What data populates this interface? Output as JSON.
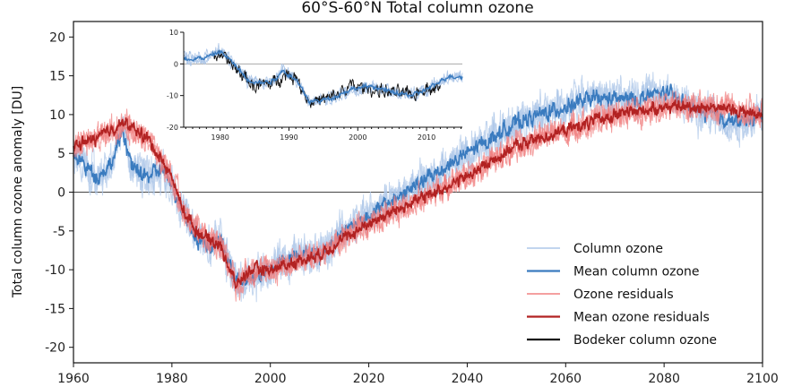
{
  "chart_data": {
    "type": "line",
    "title": "60°S-60°N Total column ozone",
    "xlabel": "",
    "ylabel": "Total column ozone anomaly [DU]",
    "xlim": [
      1960,
      2100
    ],
    "ylim": [
      -22,
      22
    ],
    "xticks": [
      1960,
      1980,
      2000,
      2020,
      2040,
      2060,
      2080,
      2100
    ],
    "yticks": [
      -20,
      -15,
      -10,
      -5,
      0,
      5,
      10,
      15,
      20
    ],
    "zero_line": true,
    "legend_position": "lower-right",
    "series": [
      {
        "name": "Column ozone",
        "color": "#aec7e8",
        "kind": "ensemble",
        "noise": 3.0,
        "anchors": [
          [
            1960,
            5
          ],
          [
            1963,
            3
          ],
          [
            1965,
            2
          ],
          [
            1968,
            4
          ],
          [
            1970,
            8
          ],
          [
            1972,
            3
          ],
          [
            1975,
            2
          ],
          [
            1978,
            3
          ],
          [
            1980,
            1
          ],
          [
            1982,
            -2
          ],
          [
            1985,
            -6
          ],
          [
            1988,
            -7
          ],
          [
            1990,
            -6
          ],
          [
            1992,
            -10
          ],
          [
            1994,
            -12
          ],
          [
            1996,
            -11
          ],
          [
            2000,
            -10
          ],
          [
            2005,
            -8
          ],
          [
            2010,
            -8
          ],
          [
            2015,
            -5
          ],
          [
            2020,
            -3
          ],
          [
            2025,
            -1
          ],
          [
            2030,
            1
          ],
          [
            2035,
            3
          ],
          [
            2040,
            5
          ],
          [
            2045,
            7
          ],
          [
            2050,
            9
          ],
          [
            2055,
            10
          ],
          [
            2060,
            11
          ],
          [
            2065,
            12
          ],
          [
            2070,
            12
          ],
          [
            2075,
            12
          ],
          [
            2080,
            13
          ],
          [
            2085,
            11
          ],
          [
            2090,
            10
          ],
          [
            2095,
            9
          ],
          [
            2100,
            10
          ]
        ]
      },
      {
        "name": "Mean column ozone",
        "color": "#3a7bbf",
        "kind": "mean",
        "noise": 1.3,
        "anchors": [
          [
            1960,
            5
          ],
          [
            1963,
            3
          ],
          [
            1965,
            2
          ],
          [
            1968,
            4
          ],
          [
            1970,
            8
          ],
          [
            1972,
            3
          ],
          [
            1975,
            2
          ],
          [
            1978,
            3
          ],
          [
            1980,
            1
          ],
          [
            1982,
            -2
          ],
          [
            1985,
            -6
          ],
          [
            1988,
            -7
          ],
          [
            1990,
            -6
          ],
          [
            1992,
            -10
          ],
          [
            1994,
            -12
          ],
          [
            1996,
            -11
          ],
          [
            2000,
            -10
          ],
          [
            2005,
            -8
          ],
          [
            2010,
            -8
          ],
          [
            2015,
            -5
          ],
          [
            2020,
            -3
          ],
          [
            2025,
            -1
          ],
          [
            2030,
            1
          ],
          [
            2035,
            3
          ],
          [
            2040,
            5
          ],
          [
            2045,
            7
          ],
          [
            2050,
            9
          ],
          [
            2055,
            10
          ],
          [
            2060,
            11
          ],
          [
            2065,
            12
          ],
          [
            2070,
            12
          ],
          [
            2075,
            12
          ],
          [
            2080,
            13
          ],
          [
            2085,
            11
          ],
          [
            2090,
            10
          ],
          [
            2095,
            9
          ],
          [
            2100,
            10
          ]
        ]
      },
      {
        "name": "Ozone residuals",
        "color": "#f08080",
        "kind": "ensemble",
        "noise": 2.2,
        "anchors": [
          [
            1960,
            6
          ],
          [
            1965,
            7
          ],
          [
            1970,
            9
          ],
          [
            1975,
            7
          ],
          [
            1980,
            2
          ],
          [
            1982,
            -2
          ],
          [
            1985,
            -5
          ],
          [
            1990,
            -7
          ],
          [
            1993,
            -12
          ],
          [
            1996,
            -10
          ],
          [
            2000,
            -10
          ],
          [
            2010,
            -8
          ],
          [
            2020,
            -4
          ],
          [
            2030,
            -1
          ],
          [
            2040,
            2
          ],
          [
            2050,
            6
          ],
          [
            2060,
            8
          ],
          [
            2070,
            10
          ],
          [
            2080,
            11
          ],
          [
            2090,
            11
          ],
          [
            2100,
            10
          ]
        ]
      },
      {
        "name": "Mean ozone residuals",
        "color": "#b22222",
        "kind": "mean",
        "noise": 1.0,
        "anchors": [
          [
            1960,
            6
          ],
          [
            1965,
            7
          ],
          [
            1970,
            9
          ],
          [
            1975,
            7
          ],
          [
            1980,
            2
          ],
          [
            1982,
            -2
          ],
          [
            1985,
            -5
          ],
          [
            1990,
            -7
          ],
          [
            1993,
            -12
          ],
          [
            1996,
            -10
          ],
          [
            2000,
            -10
          ],
          [
            2010,
            -8
          ],
          [
            2020,
            -4
          ],
          [
            2030,
            -1
          ],
          [
            2040,
            2
          ],
          [
            2050,
            6
          ],
          [
            2060,
            8
          ],
          [
            2070,
            10
          ],
          [
            2080,
            11
          ],
          [
            2090,
            11
          ],
          [
            2100,
            10
          ]
        ]
      },
      {
        "name": "Bodeker column ozone",
        "color": "#111111",
        "kind": "observed",
        "noise": 3.0,
        "anchors": [
          [
            1979,
            3
          ],
          [
            1981,
            1
          ],
          [
            1983,
            -3
          ],
          [
            1985,
            -7
          ],
          [
            1988,
            -6
          ],
          [
            1989,
            -3
          ],
          [
            1991,
            -4
          ],
          [
            1993,
            -12
          ],
          [
            1996,
            -11
          ],
          [
            1999,
            -7
          ],
          [
            2002,
            -8
          ],
          [
            2005,
            -9
          ],
          [
            2008,
            -10
          ],
          [
            2010,
            -7
          ],
          [
            2012,
            -8
          ]
        ]
      }
    ],
    "inset": {
      "xlim": [
        1974.7,
        2015.2
      ],
      "ylim": [
        -20,
        10
      ],
      "xticks": [
        1980,
        1990,
        2000,
        2010
      ],
      "yticks": [
        -20,
        -10,
        0,
        10
      ],
      "series_shown": [
        "Column ozone",
        "Mean column ozone",
        "Bodeker column ozone"
      ],
      "inset_anchors": [
        [
          1974.7,
          1.5
        ],
        [
          1978,
          2
        ],
        [
          1980,
          4
        ],
        [
          1982,
          0
        ],
        [
          1984,
          -5
        ],
        [
          1986,
          -6
        ],
        [
          1988,
          -5
        ],
        [
          1989,
          -2
        ],
        [
          1991,
          -5
        ],
        [
          1993,
          -12
        ],
        [
          1996,
          -11
        ],
        [
          1999,
          -8
        ],
        [
          2002,
          -7
        ],
        [
          2005,
          -9
        ],
        [
          2008,
          -10
        ],
        [
          2011,
          -7
        ],
        [
          2013,
          -4
        ],
        [
          2015.2,
          -4
        ]
      ]
    }
  }
}
